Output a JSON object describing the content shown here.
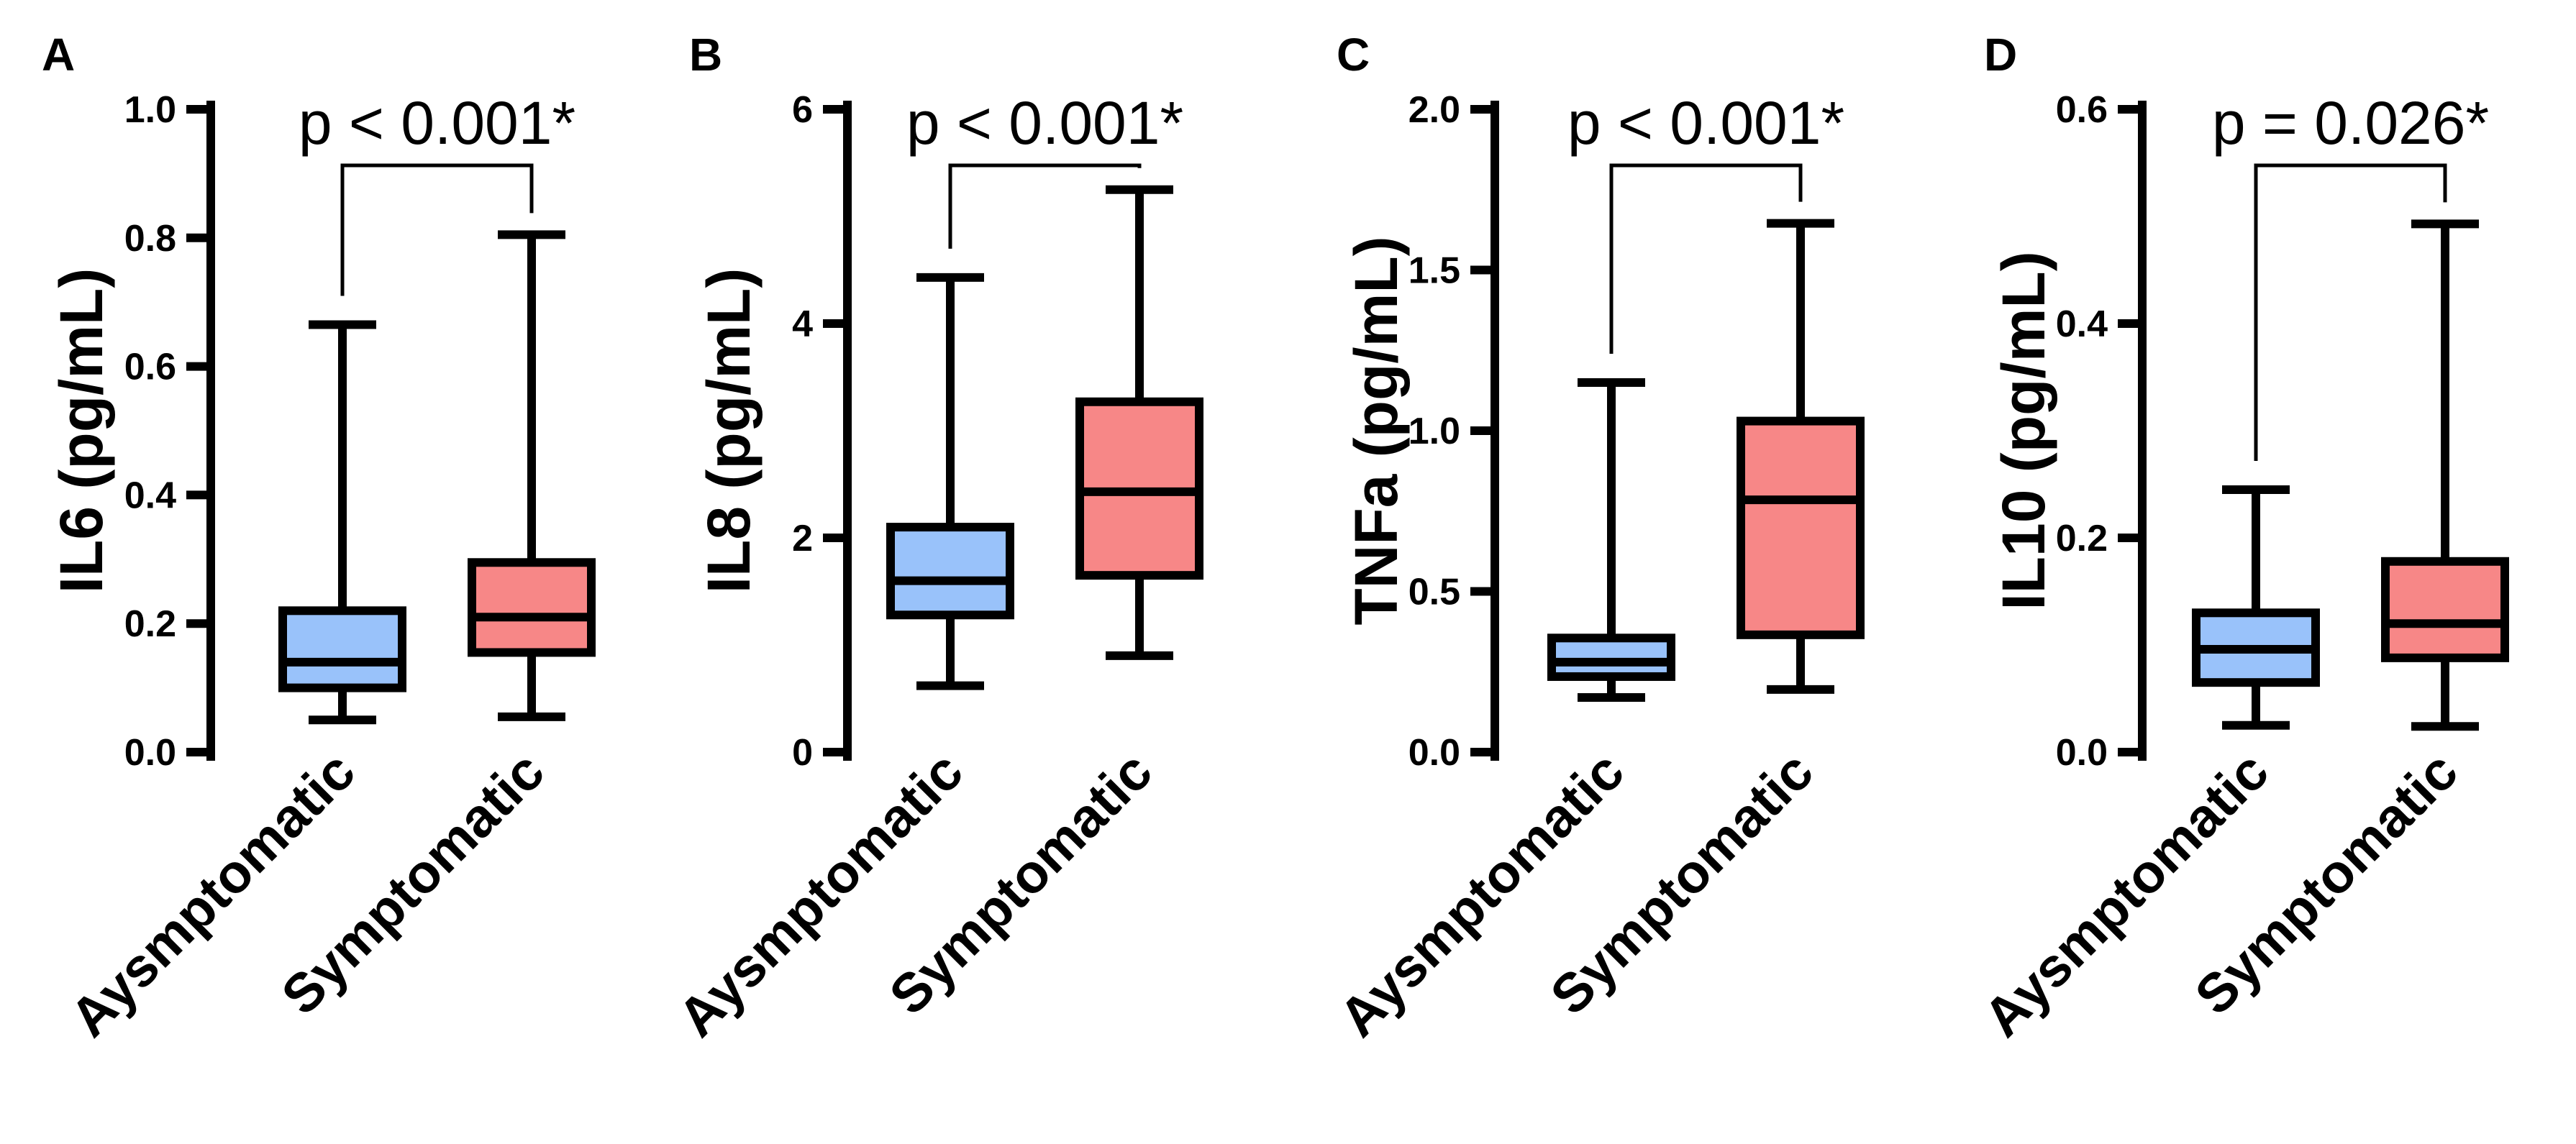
{
  "chart_data": [
    {
      "panel": "A",
      "type": "box",
      "ylabel": "IL6  (pg/mL)",
      "ylim": [
        0.0,
        1.0
      ],
      "yticks": [
        "0.0",
        "0.2",
        "0.4",
        "0.6",
        "0.8",
        "1.0"
      ],
      "categories": [
        "Aysmptomatic",
        "Symptomatic"
      ],
      "colors": [
        "#99c2fa",
        "#f78787"
      ],
      "boxes": [
        {
          "min": 0.05,
          "q1": 0.1,
          "median": 0.14,
          "q3": 0.22,
          "max": 0.665
        },
        {
          "min": 0.055,
          "q1": 0.155,
          "median": 0.21,
          "q3": 0.295,
          "max": 0.805
        }
      ],
      "annotation": "p < 0.001*"
    },
    {
      "panel": "B",
      "type": "box",
      "ylabel": "IL8 (pg/mL)",
      "ylim": [
        0,
        6
      ],
      "yticks": [
        "0",
        "2",
        "4",
        "6"
      ],
      "categories": [
        "Aysmptomatic",
        "Symptomatic"
      ],
      "colors": [
        "#99c2fa",
        "#f78787"
      ],
      "boxes": [
        {
          "min": 0.62,
          "q1": 1.28,
          "median": 1.6,
          "q3": 2.1,
          "max": 4.43
        },
        {
          "min": 0.9,
          "q1": 1.65,
          "median": 2.43,
          "q3": 3.27,
          "max": 5.25
        }
      ],
      "annotation": "p < 0.001*"
    },
    {
      "panel": "C",
      "type": "box",
      "ylabel": "TNFa (pg/mL)",
      "ylim": [
        0.0,
        2.0
      ],
      "yticks": [
        "0.0",
        "0.5",
        "1.0",
        "1.5",
        "2.0"
      ],
      "categories": [
        "Aysmptomatic",
        "Symptomatic"
      ],
      "colors": [
        "#99c2fa",
        "#f78787"
      ],
      "boxes": [
        {
          "min": 0.17,
          "q1": 0.235,
          "median": 0.28,
          "q3": 0.355,
          "max": 1.15
        },
        {
          "min": 0.195,
          "q1": 0.365,
          "median": 0.785,
          "q3": 1.03,
          "max": 1.645
        }
      ],
      "annotation": "p < 0.001*"
    },
    {
      "panel": "D",
      "type": "box",
      "ylabel": "IL10 (pg/mL)",
      "ylim": [
        0.0,
        0.6
      ],
      "yticks": [
        "0.0",
        "0.2",
        "0.4",
        "0.6"
      ],
      "categories": [
        "Aysmptomatic",
        "Symptomatic"
      ],
      "colors": [
        "#99c2fa",
        "#f78787"
      ],
      "boxes": [
        {
          "min": 0.025,
          "q1": 0.065,
          "median": 0.096,
          "q3": 0.13,
          "max": 0.245
        },
        {
          "min": 0.024,
          "q1": 0.088,
          "median": 0.12,
          "q3": 0.178,
          "max": 0.493
        }
      ],
      "annotation": "p = 0.026*"
    }
  ]
}
